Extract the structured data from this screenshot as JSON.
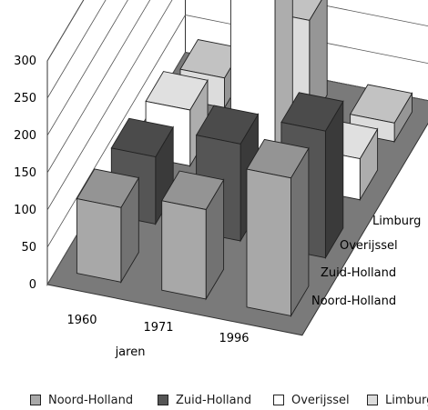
{
  "chart_data": {
    "type": "bar",
    "subtype": "3d-clustered-column",
    "categories": [
      "1960",
      "1971",
      "1996"
    ],
    "xlabel": "jaren",
    "ylabel": "",
    "ylim": [
      0,
      300
    ],
    "yticks": [
      0,
      50,
      100,
      150,
      200,
      250,
      300
    ],
    "depth_labels": [
      "Noord-Holland",
      "Zuid-Holland",
      "Overijssel",
      "Limburg"
    ],
    "series": [
      {
        "name": "Noord-Holland",
        "values": [
          100,
          120,
          185
        ],
        "color": "#a8a8a8"
      },
      {
        "name": "Zuid-Holland",
        "values": [
          90,
          130,
          170
        ],
        "color": "#555555"
      },
      {
        "name": "Overijssel",
        "values": [
          75,
          320,
          55
        ],
        "color": "#ffffff"
      },
      {
        "name": "Limburg",
        "values": [
          40,
          140,
          25
        ],
        "color": "#dcdcdc"
      }
    ],
    "grid": true,
    "legend_position": "bottom"
  }
}
